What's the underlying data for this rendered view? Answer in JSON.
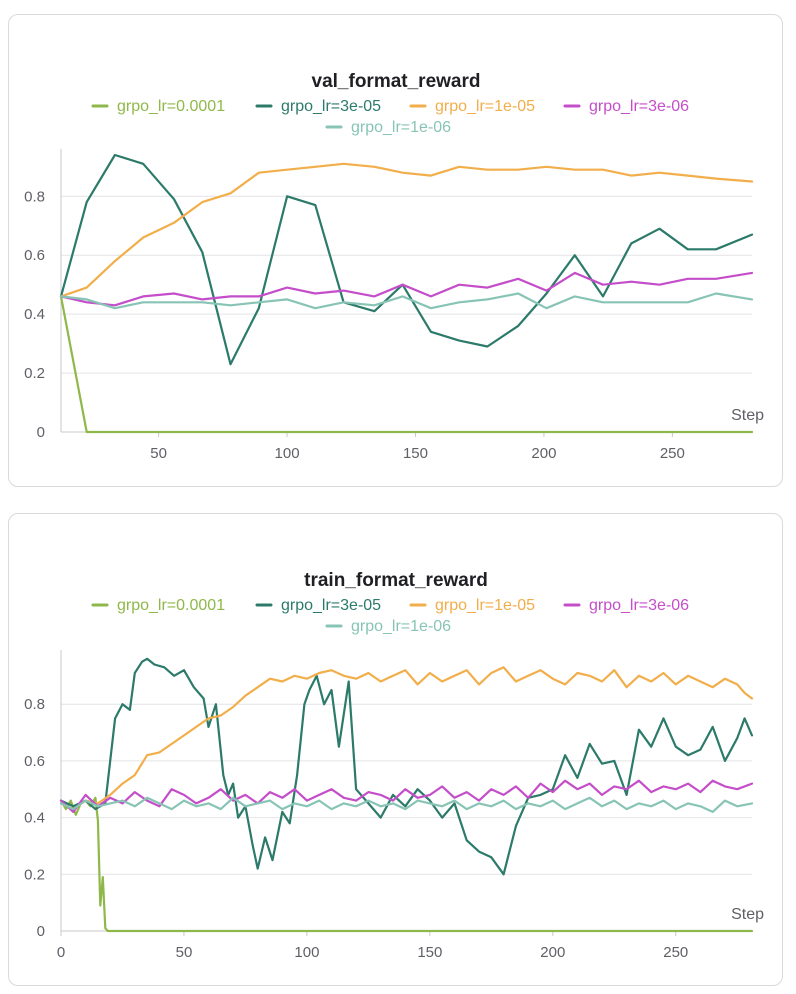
{
  "colors": {
    "lr_1e-4": "#8fb84a",
    "lr_3e-5": "#2c7a6a",
    "lr_1e-5": "#f2ae4a",
    "lr_3e-6": "#c44ec9",
    "lr_1e-6": "#88c4b5"
  },
  "chart_data": [
    {
      "type": "line",
      "title": "val_format_reward",
      "xlabel": "Step",
      "ylabel": "",
      "xlim": [
        12,
        281
      ],
      "ylim": [
        0,
        0.94
      ],
      "xticks": [
        50,
        100,
        150,
        200,
        250
      ],
      "yticks": [
        0,
        0.2,
        0.4,
        0.6,
        0.8
      ],
      "ytick_labels": [
        "0",
        "0.2",
        "0.4",
        "0.6",
        "0.8"
      ],
      "grid": true,
      "legend_position": "top",
      "series": [
        {
          "name": "grpo_lr=0.0001",
          "color_key": "lr_1e-4",
          "x": [
            12,
            22,
            33,
            44,
            56,
            67,
            78,
            89,
            100,
            111,
            122,
            134,
            145,
            156,
            167,
            178,
            190,
            201,
            212,
            223,
            234,
            245,
            256,
            267,
            281
          ],
          "y": [
            0.46,
            0,
            0,
            0,
            0,
            0,
            0,
            0,
            0,
            0,
            0,
            0,
            0,
            0,
            0,
            0,
            0,
            0,
            0,
            0,
            0,
            0,
            0,
            0,
            0
          ]
        },
        {
          "name": "grpo_lr=3e-05",
          "color_key": "lr_3e-5",
          "x": [
            12,
            22,
            33,
            44,
            56,
            67,
            78,
            89,
            100,
            111,
            122,
            134,
            145,
            156,
            167,
            178,
            190,
            201,
            212,
            223,
            234,
            245,
            256,
            267,
            281
          ],
          "y": [
            0.46,
            0.78,
            0.94,
            0.91,
            0.79,
            0.61,
            0.23,
            0.42,
            0.8,
            0.77,
            0.44,
            0.41,
            0.5,
            0.34,
            0.31,
            0.29,
            0.36,
            0.47,
            0.6,
            0.46,
            0.64,
            0.69,
            0.62,
            0.62,
            0.67
          ]
        },
        {
          "name": "grpo_lr=1e-05",
          "color_key": "lr_1e-5",
          "x": [
            12,
            22,
            33,
            44,
            56,
            67,
            78,
            89,
            100,
            111,
            122,
            134,
            145,
            156,
            167,
            178,
            190,
            201,
            212,
            223,
            234,
            245,
            256,
            267,
            281
          ],
          "y": [
            0.46,
            0.49,
            0.58,
            0.66,
            0.71,
            0.78,
            0.81,
            0.88,
            0.89,
            0.9,
            0.91,
            0.9,
            0.88,
            0.87,
            0.9,
            0.89,
            0.89,
            0.9,
            0.89,
            0.89,
            0.87,
            0.88,
            0.87,
            0.86,
            0.85
          ]
        },
        {
          "name": "grpo_lr=3e-06",
          "color_key": "lr_3e-6",
          "x": [
            12,
            22,
            33,
            44,
            56,
            67,
            78,
            89,
            100,
            111,
            122,
            134,
            145,
            156,
            167,
            178,
            190,
            201,
            212,
            223,
            234,
            245,
            256,
            267,
            281
          ],
          "y": [
            0.46,
            0.44,
            0.43,
            0.46,
            0.47,
            0.45,
            0.46,
            0.46,
            0.49,
            0.47,
            0.48,
            0.46,
            0.5,
            0.46,
            0.5,
            0.49,
            0.52,
            0.48,
            0.54,
            0.5,
            0.51,
            0.5,
            0.52,
            0.52,
            0.54
          ]
        },
        {
          "name": "grpo_lr=1e-06",
          "color_key": "lr_1e-6",
          "x": [
            12,
            22,
            33,
            44,
            56,
            67,
            78,
            89,
            100,
            111,
            122,
            134,
            145,
            156,
            167,
            178,
            190,
            201,
            212,
            223,
            234,
            245,
            256,
            267,
            281
          ],
          "y": [
            0.46,
            0.45,
            0.42,
            0.44,
            0.44,
            0.44,
            0.43,
            0.44,
            0.45,
            0.42,
            0.44,
            0.43,
            0.46,
            0.42,
            0.44,
            0.45,
            0.47,
            0.42,
            0.46,
            0.44,
            0.44,
            0.44,
            0.44,
            0.47,
            0.45
          ]
        }
      ]
    },
    {
      "type": "line",
      "title": "train_format_reward",
      "xlabel": "Step",
      "ylabel": "",
      "xlim": [
        0,
        281
      ],
      "ylim": [
        0,
        0.97
      ],
      "xticks": [
        0,
        50,
        100,
        150,
        200,
        250
      ],
      "yticks": [
        0,
        0.2,
        0.4,
        0.6,
        0.8
      ],
      "ytick_labels": [
        "0",
        "0.2",
        "0.4",
        "0.6",
        "0.8"
      ],
      "grid": true,
      "legend_position": "top",
      "series": [
        {
          "name": "grpo_lr=0.0001",
          "color_key": "lr_1e-4",
          "x": [
            0,
            2,
            4,
            6,
            8,
            10,
            12,
            14,
            15,
            16,
            17,
            18,
            19,
            20,
            25,
            50,
            100,
            150,
            200,
            250,
            281
          ],
          "y": [
            0.46,
            0.43,
            0.46,
            0.41,
            0.45,
            0.46,
            0.44,
            0.47,
            0.39,
            0.09,
            0.19,
            0.01,
            0,
            0,
            0,
            0,
            0,
            0,
            0,
            0,
            0
          ]
        },
        {
          "name": "grpo_lr=3e-05",
          "color_key": "lr_3e-5",
          "x": [
            0,
            5,
            10,
            14,
            18,
            20,
            22,
            25,
            28,
            30,
            33,
            35,
            38,
            42,
            46,
            50,
            54,
            58,
            60,
            63,
            66,
            68,
            70,
            72,
            75,
            78,
            80,
            83,
            86,
            90,
            93,
            96,
            99,
            101,
            104,
            107,
            110,
            113,
            117,
            120,
            125,
            130,
            135,
            140,
            145,
            150,
            155,
            160,
            165,
            170,
            175,
            180,
            185,
            190,
            195,
            200,
            205,
            210,
            215,
            220,
            225,
            230,
            235,
            240,
            245,
            250,
            255,
            260,
            265,
            270,
            275,
            278,
            281
          ],
          "y": [
            0.46,
            0.44,
            0.46,
            0.43,
            0.45,
            0.6,
            0.75,
            0.8,
            0.78,
            0.91,
            0.95,
            0.96,
            0.94,
            0.93,
            0.9,
            0.92,
            0.86,
            0.82,
            0.72,
            0.8,
            0.55,
            0.48,
            0.52,
            0.4,
            0.44,
            0.3,
            0.22,
            0.33,
            0.25,
            0.42,
            0.38,
            0.55,
            0.8,
            0.85,
            0.9,
            0.8,
            0.85,
            0.65,
            0.88,
            0.5,
            0.45,
            0.4,
            0.48,
            0.44,
            0.5,
            0.46,
            0.4,
            0.45,
            0.32,
            0.28,
            0.26,
            0.2,
            0.37,
            0.47,
            0.48,
            0.5,
            0.62,
            0.54,
            0.66,
            0.59,
            0.6,
            0.48,
            0.71,
            0.65,
            0.75,
            0.65,
            0.62,
            0.64,
            0.72,
            0.6,
            0.68,
            0.75,
            0.69
          ]
        },
        {
          "name": "grpo_lr=1e-05",
          "color_key": "lr_1e-5",
          "x": [
            0,
            5,
            10,
            15,
            20,
            25,
            30,
            35,
            40,
            45,
            50,
            55,
            60,
            65,
            70,
            75,
            80,
            85,
            90,
            95,
            100,
            105,
            110,
            115,
            120,
            125,
            130,
            135,
            140,
            145,
            150,
            155,
            160,
            165,
            170,
            175,
            180,
            185,
            190,
            195,
            200,
            205,
            210,
            215,
            220,
            225,
            230,
            235,
            240,
            245,
            250,
            255,
            260,
            265,
            270,
            275,
            278,
            281
          ],
          "y": [
            0.45,
            0.43,
            0.46,
            0.45,
            0.48,
            0.52,
            0.55,
            0.62,
            0.63,
            0.66,
            0.69,
            0.72,
            0.75,
            0.76,
            0.79,
            0.83,
            0.86,
            0.89,
            0.88,
            0.9,
            0.89,
            0.91,
            0.92,
            0.9,
            0.89,
            0.91,
            0.88,
            0.9,
            0.92,
            0.87,
            0.91,
            0.88,
            0.9,
            0.92,
            0.87,
            0.91,
            0.93,
            0.88,
            0.9,
            0.92,
            0.89,
            0.87,
            0.91,
            0.9,
            0.88,
            0.92,
            0.86,
            0.9,
            0.88,
            0.91,
            0.87,
            0.9,
            0.88,
            0.86,
            0.89,
            0.87,
            0.84,
            0.82
          ]
        },
        {
          "name": "grpo_lr=3e-06",
          "color_key": "lr_3e-6",
          "x": [
            0,
            5,
            10,
            15,
            20,
            25,
            30,
            35,
            40,
            45,
            50,
            55,
            60,
            65,
            70,
            75,
            80,
            85,
            90,
            95,
            100,
            105,
            110,
            115,
            120,
            125,
            130,
            135,
            140,
            145,
            150,
            155,
            160,
            165,
            170,
            175,
            180,
            185,
            190,
            195,
            200,
            205,
            210,
            215,
            220,
            225,
            230,
            235,
            240,
            245,
            250,
            255,
            260,
            265,
            270,
            275,
            281
          ],
          "y": [
            0.46,
            0.42,
            0.48,
            0.44,
            0.47,
            0.45,
            0.49,
            0.46,
            0.44,
            0.5,
            0.48,
            0.45,
            0.47,
            0.5,
            0.46,
            0.48,
            0.45,
            0.49,
            0.47,
            0.5,
            0.46,
            0.48,
            0.5,
            0.47,
            0.46,
            0.49,
            0.48,
            0.46,
            0.5,
            0.47,
            0.48,
            0.51,
            0.47,
            0.49,
            0.46,
            0.5,
            0.48,
            0.51,
            0.47,
            0.52,
            0.49,
            0.53,
            0.5,
            0.52,
            0.48,
            0.51,
            0.5,
            0.53,
            0.49,
            0.51,
            0.5,
            0.52,
            0.49,
            0.53,
            0.51,
            0.5,
            0.52
          ]
        },
        {
          "name": "grpo_lr=1e-06",
          "color_key": "lr_1e-6",
          "x": [
            0,
            5,
            10,
            15,
            20,
            25,
            30,
            35,
            40,
            45,
            50,
            55,
            60,
            65,
            70,
            75,
            80,
            85,
            90,
            95,
            100,
            105,
            110,
            115,
            120,
            125,
            130,
            135,
            140,
            145,
            150,
            155,
            160,
            165,
            170,
            175,
            180,
            185,
            190,
            195,
            200,
            205,
            210,
            215,
            220,
            225,
            230,
            235,
            240,
            245,
            250,
            255,
            260,
            265,
            270,
            275,
            281
          ],
          "y": [
            0.45,
            0.43,
            0.46,
            0.44,
            0.45,
            0.46,
            0.44,
            0.47,
            0.45,
            0.43,
            0.46,
            0.44,
            0.45,
            0.43,
            0.47,
            0.44,
            0.45,
            0.46,
            0.43,
            0.45,
            0.44,
            0.46,
            0.43,
            0.45,
            0.44,
            0.46,
            0.44,
            0.45,
            0.43,
            0.46,
            0.45,
            0.44,
            0.46,
            0.43,
            0.45,
            0.44,
            0.46,
            0.43,
            0.45,
            0.44,
            0.46,
            0.43,
            0.45,
            0.47,
            0.44,
            0.46,
            0.43,
            0.45,
            0.44,
            0.46,
            0.43,
            0.45,
            0.44,
            0.42,
            0.46,
            0.44,
            0.45
          ]
        }
      ]
    }
  ]
}
